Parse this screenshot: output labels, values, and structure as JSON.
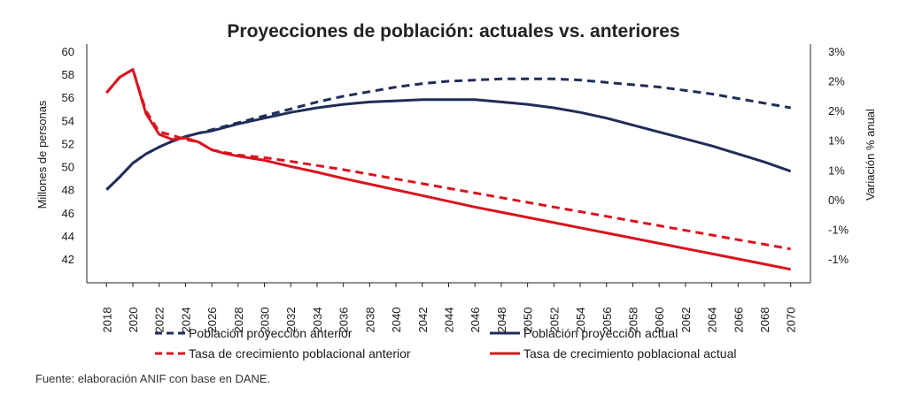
{
  "chart_data": {
    "type": "line",
    "title": "Proyecciones de población: actuales vs. anteriores",
    "left_axis": {
      "label": "Millones de personas",
      "ticks": [
        "60",
        "58",
        "56",
        "54",
        "52",
        "50",
        "48",
        "46",
        "44",
        "42"
      ],
      "range": [
        40,
        60
      ]
    },
    "right_axis": {
      "label": "Variación % anual",
      "ticks": [
        "3%",
        "2%",
        "2%",
        "1%",
        "1%",
        "0%",
        "-1%",
        "-1%"
      ],
      "range": [
        -1.5,
        3.0
      ]
    },
    "x": [
      2018,
      2019,
      2020,
      2021,
      2022,
      2023,
      2024,
      2025,
      2026,
      2027,
      2028,
      2030,
      2032,
      2034,
      2036,
      2038,
      2040,
      2042,
      2044,
      2046,
      2048,
      2050,
      2052,
      2054,
      2056,
      2058,
      2060,
      2062,
      2064,
      2066,
      2068,
      2070
    ],
    "xticks": [
      "2018",
      "2020",
      "2022",
      "2024",
      "2026",
      "2028",
      "2030",
      "2032",
      "2034",
      "2036",
      "2038",
      "2040",
      "2042",
      "2044",
      "2046",
      "2048",
      "2050",
      "2052",
      "2054",
      "2056",
      "2058",
      "2060",
      "2062",
      "2064",
      "2066",
      "2068",
      "2070"
    ],
    "series": [
      {
        "name": "Población proyección anterior",
        "axis": "left",
        "color": "#1f2d5a",
        "dash": true,
        "values": [
          48.0,
          49.1,
          50.3,
          51.1,
          51.7,
          52.2,
          52.6,
          52.9,
          53.2,
          53.5,
          53.8,
          54.4,
          55.0,
          55.6,
          56.1,
          56.5,
          56.9,
          57.2,
          57.4,
          57.5,
          57.6,
          57.6,
          57.6,
          57.5,
          57.3,
          57.1,
          56.9,
          56.6,
          56.3,
          55.9,
          55.5,
          55.1
        ]
      },
      {
        "name": "Población proyección actual",
        "axis": "left",
        "color": "#1f2d5a",
        "dash": false,
        "values": [
          48.0,
          49.1,
          50.3,
          51.1,
          51.7,
          52.2,
          52.6,
          52.9,
          53.1,
          53.4,
          53.7,
          54.2,
          54.7,
          55.1,
          55.4,
          55.6,
          55.7,
          55.8,
          55.8,
          55.8,
          55.6,
          55.4,
          55.1,
          54.7,
          54.2,
          53.6,
          53.0,
          52.4,
          51.8,
          51.1,
          50.4,
          49.6
        ]
      },
      {
        "name": "Tasa de crecimiento poblacional anterior",
        "axis": "right",
        "color": "#d9141f",
        "dash": true,
        "values": [
          2.2,
          2.5,
          2.65,
          1.85,
          1.45,
          1.38,
          1.3,
          1.25,
          1.1,
          1.05,
          1.0,
          0.95,
          0.88,
          0.8,
          0.72,
          0.63,
          0.54,
          0.45,
          0.36,
          0.27,
          0.18,
          0.09,
          0.0,
          -0.09,
          -0.18,
          -0.27,
          -0.36,
          -0.45,
          -0.54,
          -0.63,
          -0.72,
          -0.81
        ]
      },
      {
        "name": "Tasa de crecimiento poblacional actual",
        "axis": "right",
        "color": "#d9141f",
        "dash": false,
        "values": [
          2.2,
          2.5,
          2.65,
          1.8,
          1.4,
          1.3,
          1.33,
          1.25,
          1.1,
          1.03,
          0.98,
          0.9,
          0.78,
          0.67,
          0.55,
          0.44,
          0.33,
          0.22,
          0.11,
          0.0,
          -0.1,
          -0.2,
          -0.3,
          -0.4,
          -0.5,
          -0.6,
          -0.7,
          -0.8,
          -0.9,
          -1.0,
          -1.1,
          -1.2
        ]
      }
    ],
    "legend_position": "bottom",
    "grid": false
  },
  "source": "Fuente: elaboración ANIF con base en DANE."
}
